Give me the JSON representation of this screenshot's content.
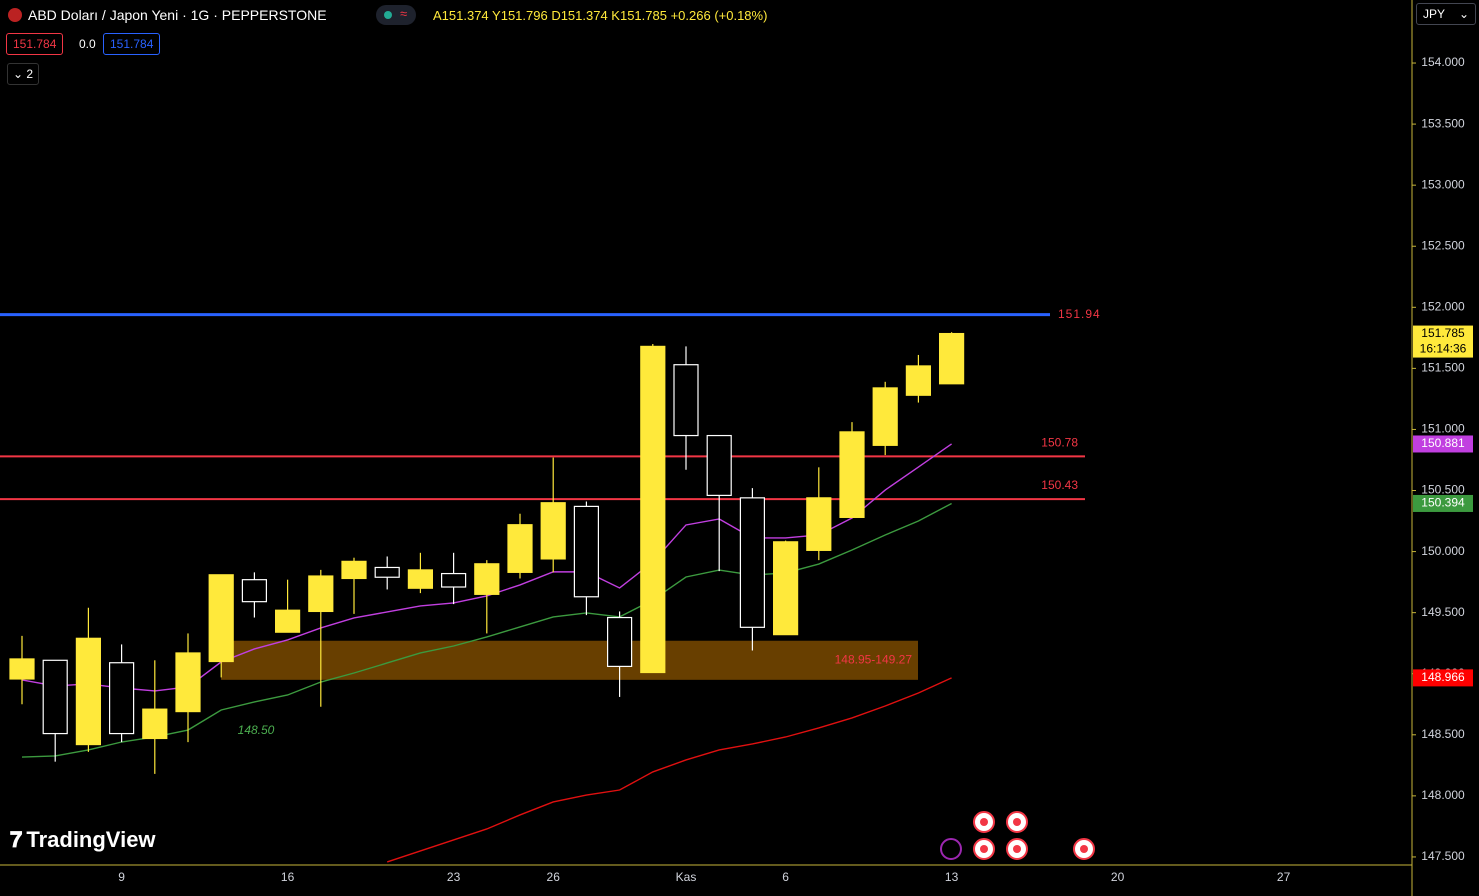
{
  "header": {
    "symbol": "ABD Doları / Japon Yeni · 1G · PEPPERSTONE",
    "ohlc_text": "A151.374 Y151.796 D151.374 K151.785 +0.266 (+0.18%)",
    "sell": "151.784",
    "spread": "0.0",
    "buy": "151.784",
    "indicators_count": "2",
    "currency": "JPY",
    "countdown": "16:14:36",
    "logo": "TradingView"
  },
  "chart_data": {
    "type": "candlestick",
    "categories": [
      null,
      null,
      null,
      "9",
      null,
      null,
      null,
      null,
      "16",
      null,
      null,
      null,
      null,
      "23",
      null,
      null,
      "26",
      null,
      null,
      null,
      "Kas",
      null,
      null,
      "6",
      null,
      null,
      null,
      null,
      "13",
      null,
      null,
      null,
      null,
      "20",
      null,
      null,
      null,
      null,
      "27"
    ],
    "open": [
      148.957,
      149.11,
      148.42,
      149.09,
      148.47,
      148.69,
      149.1,
      149.77,
      149.34,
      149.51,
      149.78,
      149.87,
      149.7,
      149.82,
      149.65,
      149.83,
      149.94,
      150.37,
      149.46,
      149.01,
      151.53,
      150.95,
      150.44,
      149.32,
      150.01,
      150.28,
      150.87,
      151.28,
      151.374,
      null,
      null,
      null,
      null,
      null,
      null,
      null,
      null,
      null,
      null
    ],
    "high": [
      149.31,
      149.11,
      149.54,
      149.24,
      149.11,
      149.33,
      149.81,
      149.83,
      149.77,
      149.85,
      149.95,
      149.96,
      149.99,
      149.99,
      149.93,
      150.31,
      150.77,
      150.41,
      149.51,
      151.7,
      151.68,
      150.95,
      150.52,
      150.09,
      150.69,
      151.06,
      151.39,
      151.61,
      151.796,
      null,
      null,
      null,
      null,
      null,
      null,
      null,
      null,
      null,
      null
    ],
    "low": [
      148.75,
      148.28,
      148.36,
      148.44,
      148.18,
      148.44,
      148.97,
      149.46,
      149.34,
      148.73,
      149.49,
      149.69,
      149.66,
      149.57,
      149.33,
      149.78,
      149.83,
      149.48,
      148.81,
      149.01,
      150.67,
      149.84,
      149.19,
      149.32,
      149.93,
      150.28,
      150.79,
      151.22,
      151.374,
      null,
      null,
      null,
      null,
      null,
      null,
      null,
      null,
      null,
      null
    ],
    "close": [
      149.121,
      148.51,
      149.29,
      148.51,
      148.71,
      149.17,
      149.81,
      149.59,
      149.52,
      149.8,
      149.92,
      149.79,
      149.85,
      149.71,
      149.9,
      150.22,
      150.4,
      149.63,
      149.06,
      151.68,
      150.95,
      150.46,
      149.38,
      150.08,
      150.44,
      150.98,
      151.34,
      151.52,
      151.785,
      null,
      null,
      null,
      null,
      null,
      null,
      null,
      null,
      null,
      null
    ],
    "up_color": "#ffe93b",
    "down_color": "#ffffff",
    "series": [
      {
        "color": "#c13fe0",
        "values": [
          148.949,
          148.9,
          148.916,
          148.883,
          148.859,
          148.892,
          149.097,
          149.203,
          149.277,
          149.375,
          149.457,
          149.506,
          149.555,
          149.58,
          149.637,
          149.727,
          149.834,
          149.834,
          149.702,
          149.915,
          150.218,
          150.267,
          150.112,
          150.112,
          150.136,
          150.275,
          150.504,
          150.692,
          150.881,
          null,
          null,
          null,
          null,
          null,
          null,
          null,
          null,
          null,
          null
        ]
      },
      {
        "color": "#3c9a3f",
        "values": [
          148.318,
          148.327,
          148.376,
          148.441,
          148.482,
          148.539,
          148.703,
          148.769,
          148.826,
          148.932,
          149.006,
          149.088,
          149.17,
          149.227,
          149.301,
          149.383,
          149.465,
          149.498,
          149.465,
          149.604,
          149.792,
          149.849,
          149.808,
          149.825,
          149.898,
          150.013,
          150.136,
          150.25,
          150.394,
          null,
          null,
          null,
          null,
          null,
          null,
          null,
          null,
          null,
          null
        ]
      },
      {
        "color": "#e01010",
        "values": [
          null,
          null,
          null,
          null,
          null,
          null,
          null,
          null,
          null,
          null,
          null,
          147.459,
          147.549,
          147.639,
          147.729,
          147.844,
          147.95,
          148.007,
          148.048,
          148.196,
          148.294,
          148.376,
          148.425,
          148.482,
          148.556,
          148.638,
          148.736,
          148.842,
          148.966,
          null,
          null,
          null,
          null,
          null,
          null,
          null,
          null,
          null,
          null
        ]
      }
    ],
    "levels": [
      {
        "value": 151.94,
        "color": "#2962ff"
      },
      {
        "value": 150.78,
        "color": "#f23645"
      },
      {
        "value": 150.43,
        "color": "#f23645"
      }
    ],
    "zone": {
      "low": 148.95,
      "high": 149.27,
      "label": "148.95-149.27",
      "color": "#7a4a00"
    },
    "annotations": [
      "148.50"
    ],
    "ylim": [
      147.434,
      154.516
    ],
    "yticks": [
      {
        "value": 147.5,
        "label": "147.500"
      },
      {
        "value": 148,
        "label": "148.000"
      },
      {
        "value": 148.5,
        "label": "148.500"
      },
      {
        "value": 149,
        "label": "149.000"
      },
      {
        "value": 149.5,
        "label": "149.500"
      },
      {
        "value": 150,
        "label": "150.000"
      },
      {
        "value": 150.5,
        "label": "150.500"
      },
      {
        "value": 151,
        "label": "151.000"
      },
      {
        "value": 151.5,
        "label": "151.500"
      },
      {
        "value": 152,
        "label": "152.000"
      },
      {
        "value": 152.5,
        "label": "152.500"
      },
      {
        "value": 153,
        "label": "153.000"
      },
      {
        "value": 153.5,
        "label": "153.500"
      },
      {
        "value": 154,
        "label": "154.000"
      }
    ],
    "grid": false
  }
}
